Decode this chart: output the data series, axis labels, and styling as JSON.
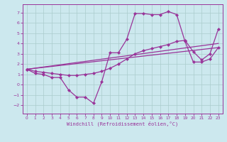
{
  "bg_color": "#cce8ee",
  "line_color": "#993399",
  "grid_color": "#aacccc",
  "xlabel": "Windchill (Refroidissement éolien,°C)",
  "xlim": [
    -0.5,
    23.5
  ],
  "ylim": [
    -2.8,
    7.8
  ],
  "yticks": [
    -2,
    -1,
    0,
    1,
    2,
    3,
    4,
    5,
    6,
    7
  ],
  "xticks": [
    0,
    1,
    2,
    3,
    4,
    5,
    6,
    7,
    8,
    9,
    10,
    11,
    12,
    13,
    14,
    15,
    16,
    17,
    18,
    19,
    20,
    21,
    22,
    23
  ],
  "line1_x": [
    0,
    1,
    2,
    3,
    4,
    5,
    6,
    7,
    8,
    9,
    10,
    11,
    12,
    13,
    14,
    15,
    16,
    17,
    18,
    19,
    20,
    21,
    22,
    23
  ],
  "line1_y": [
    1.5,
    1.1,
    1.0,
    0.7,
    0.7,
    -0.5,
    -1.2,
    -1.2,
    -1.8,
    0.3,
    3.1,
    3.1,
    4.4,
    6.9,
    6.9,
    6.8,
    6.8,
    7.1,
    6.8,
    4.2,
    2.2,
    2.2,
    2.5,
    3.6
  ],
  "line2_x": [
    0,
    23
  ],
  "line2_y": [
    1.5,
    3.6
  ],
  "line3_x": [
    0,
    1,
    2,
    3,
    4,
    5,
    6,
    7,
    8,
    9,
    10,
    11,
    12,
    13,
    14,
    15,
    16,
    17,
    18,
    19,
    20,
    21,
    22,
    23
  ],
  "line3_y": [
    1.5,
    1.3,
    1.2,
    1.1,
    1.0,
    0.9,
    0.9,
    1.0,
    1.1,
    1.3,
    1.6,
    2.0,
    2.5,
    3.0,
    3.3,
    3.5,
    3.7,
    3.9,
    4.2,
    4.3,
    3.2,
    2.4,
    3.0,
    5.4
  ],
  "line4_x": [
    0,
    23
  ],
  "line4_y": [
    1.5,
    4.0
  ]
}
